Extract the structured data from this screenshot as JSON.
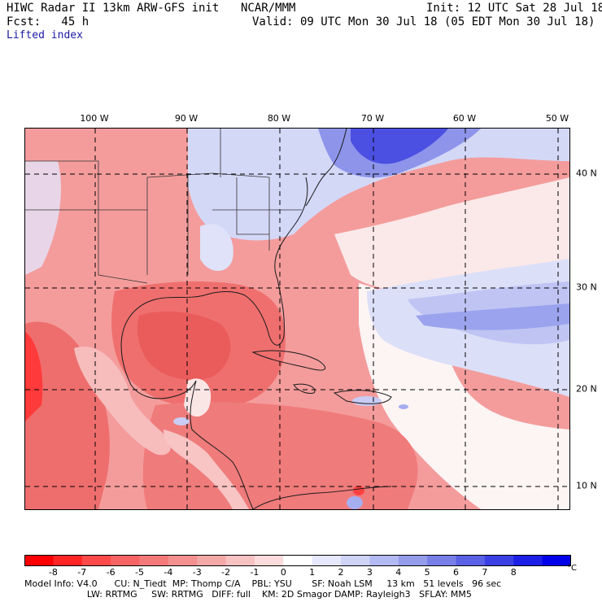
{
  "header": {
    "title": "HIWC Radar II 13km ARW-GFS init",
    "agency": "NCAR/MMM",
    "init": "Init: 12 UTC Sat 28 Jul 18",
    "fcst": "Fcst:   45 h",
    "valid": "Valid: 09 UTC Mon 30 Jul 18 (05 EDT Mon 30 Jul 18)",
    "field": "Lifted index"
  },
  "map": {
    "lon_labels": [
      "100 W",
      "90 W",
      "80 W",
      "70 W",
      "60 W",
      "50 W"
    ],
    "lat_labels": [
      "40 N",
      "30 N",
      "20 N",
      "10 N"
    ],
    "colors": {
      "deep_red": "#ff2a2a",
      "mid_red": "#f27a7a",
      "light_red": "#f6b3b3",
      "white": "#ffffff",
      "light_blue": "#d6d9f7",
      "mid_blue": "#8e96ea",
      "deep_blue": "#3a3ae0"
    }
  },
  "colorbar": {
    "ticks": [
      "-8",
      "-7",
      "-6",
      "-5",
      "-4",
      "-3",
      "-2",
      "-1",
      "0",
      "1",
      "2",
      "3",
      "4",
      "5",
      "6",
      "7",
      "8"
    ],
    "unit": "°C",
    "colors": [
      "#ff0000",
      "#ff2525",
      "#fc4a4a",
      "#f86464",
      "#f47a7a",
      "#f49090",
      "#f5a8a8",
      "#f7c2c2",
      "#fadcdc",
      "#ffffff",
      "#e6e8fb",
      "#cfd3f6",
      "#b3b9f2",
      "#959deb",
      "#7880e7",
      "#5a61e4",
      "#3b40e4",
      "#1c1fe6",
      "#0000e8"
    ]
  },
  "footer": {
    "line1": "Model Info: V4.0      CU: N_Tiedt  MP: Thomp C/A    PBL: YSU       SF: Noah LSM     13 km   51 levels   96 sec",
    "line2": "                      LW: RRTMG     SW: RRTMG   DIFF: full    KM: 2D Smagor DAMP: Rayleigh3   SFLAY: MM5"
  }
}
